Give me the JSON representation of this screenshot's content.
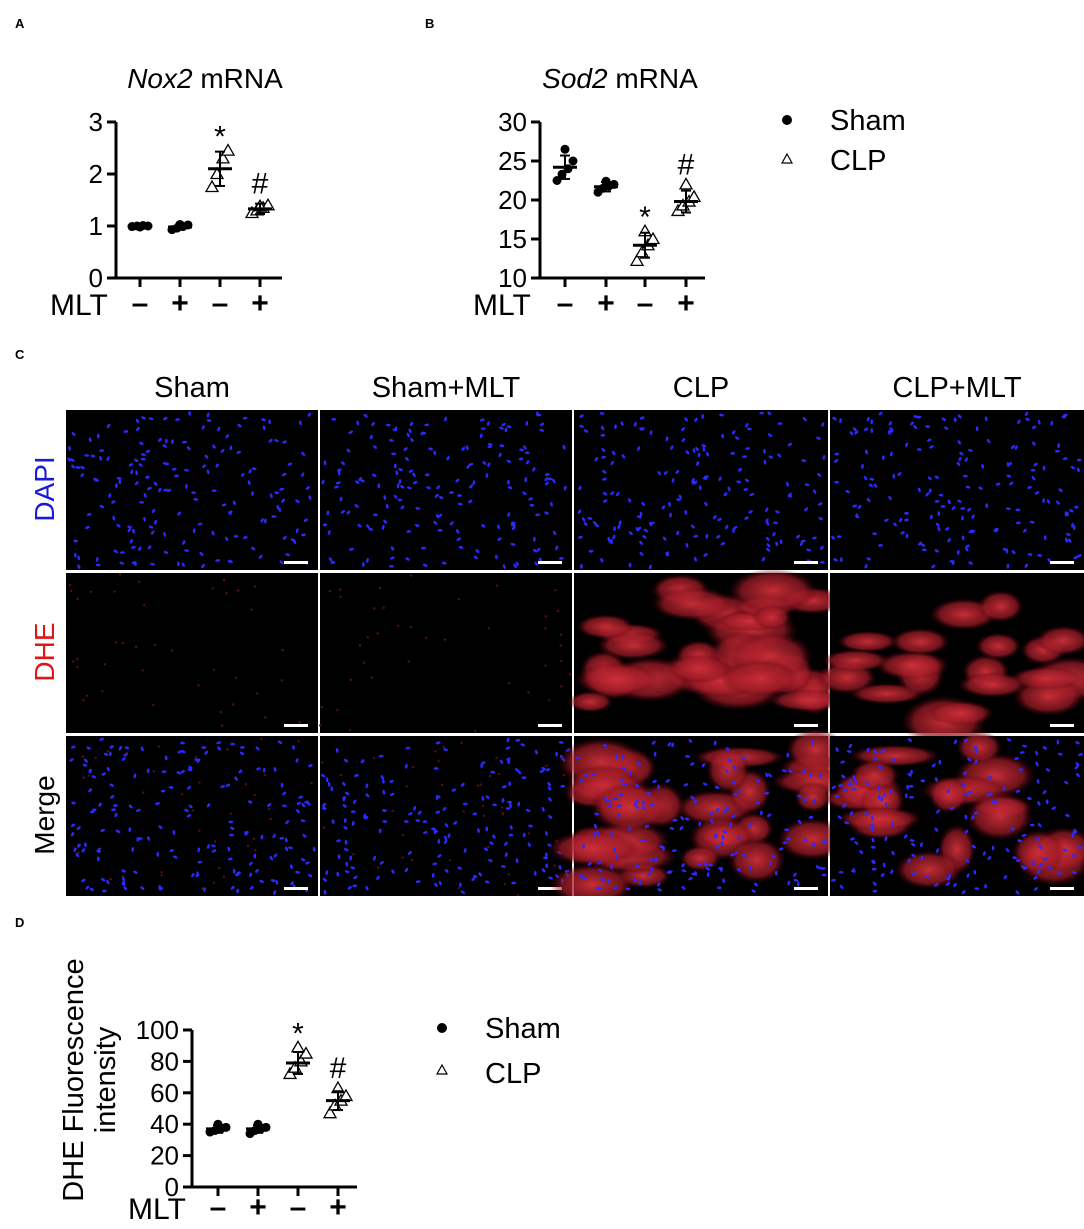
{
  "panels": {
    "a": "A",
    "b": "B",
    "c": "C",
    "d": "D"
  },
  "legend": {
    "sham": "Sham",
    "clp": "CLP"
  },
  "mlt_label": "MLT",
  "mlt_signs": [
    "–",
    "+",
    "–",
    "+"
  ],
  "micrograph": {
    "columns": [
      "Sham",
      "Sham+MLT",
      "CLP",
      "CLP+MLT"
    ],
    "rows": [
      {
        "label": "DAPI",
        "color": "#1a1adb"
      },
      {
        "label": "DHE",
        "color": "#e01515"
      },
      {
        "label": "Merge",
        "color": "#000000"
      }
    ],
    "dhe_intensity": [
      0.03,
      0.03,
      0.85,
      0.55
    ]
  },
  "chart_data": [
    {
      "type": "scatter",
      "title_italic": "Nox2",
      "title_rest": " mRNA",
      "ylabel": "",
      "ylim": [
        0,
        3
      ],
      "yticks": [
        0,
        1,
        2,
        3
      ],
      "categories": [
        "–",
        "+",
        "–",
        "+"
      ],
      "groups": [
        {
          "series": "Sham",
          "mean": 1.0,
          "sd": 0.02,
          "points": [
            0.99,
            1.0,
            1.01,
            1.0,
            0.98
          ]
        },
        {
          "series": "Sham",
          "mean": 0.98,
          "sd": 0.05,
          "points": [
            0.93,
            0.96,
            0.99,
            1.02,
            1.03
          ]
        },
        {
          "series": "CLP",
          "mean": 2.1,
          "sd": 0.33,
          "points": [
            1.75,
            2.0,
            2.3,
            2.45
          ]
        },
        {
          "series": "CLP",
          "mean": 1.33,
          "sd": 0.1,
          "points": [
            1.25,
            1.3,
            1.35,
            1.4,
            1.38
          ]
        }
      ],
      "annotations": [
        "",
        "",
        "*",
        "#"
      ]
    },
    {
      "type": "scatter",
      "title_italic": "Sod2",
      "title_rest": " mRNA",
      "ylabel": "",
      "ylim": [
        10,
        30
      ],
      "yticks": [
        10,
        15,
        20,
        25,
        30
      ],
      "categories": [
        "–",
        "+",
        "–",
        "+"
      ],
      "groups": [
        {
          "series": "Sham",
          "mean": 24.2,
          "sd": 1.5,
          "points": [
            22.5,
            23.3,
            24.0,
            25.0,
            26.5
          ]
        },
        {
          "series": "Sham",
          "mean": 21.7,
          "sd": 0.6,
          "points": [
            21.0,
            21.5,
            21.8,
            22.0,
            22.4
          ]
        },
        {
          "series": "CLP",
          "mean": 14.2,
          "sd": 1.6,
          "points": [
            12.2,
            13.3,
            14.2,
            15.0,
            16.0
          ]
        },
        {
          "series": "CLP",
          "mean": 19.8,
          "sd": 1.4,
          "points": [
            18.6,
            19.3,
            19.8,
            20.4,
            22.0
          ]
        }
      ],
      "annotations": [
        "",
        "",
        "*",
        "#"
      ]
    },
    {
      "type": "scatter",
      "title_italic": "",
      "title_rest": "",
      "ylabel": "DHE Fluorescence intensity",
      "ylabel_lines": [
        "DHE Fluorescence",
        "intensity"
      ],
      "ylim": [
        0,
        100
      ],
      "yticks": [
        0,
        20,
        40,
        60,
        80,
        100
      ],
      "categories": [
        "–",
        "+",
        "–",
        "+"
      ],
      "groups": [
        {
          "series": "Sham",
          "mean": 37,
          "sd": 2.5,
          "points": [
            35,
            36,
            37,
            38,
            40
          ]
        },
        {
          "series": "Sham",
          "mean": 37,
          "sd": 2.5,
          "points": [
            34,
            36,
            37,
            38,
            40
          ]
        },
        {
          "series": "CLP",
          "mean": 79,
          "sd": 7,
          "points": [
            72,
            76,
            80,
            85,
            89
          ]
        },
        {
          "series": "CLP",
          "mean": 55,
          "sd": 6,
          "points": [
            47,
            52,
            55,
            58,
            63
          ]
        }
      ],
      "annotations": [
        "",
        "",
        "*",
        "#"
      ]
    }
  ]
}
